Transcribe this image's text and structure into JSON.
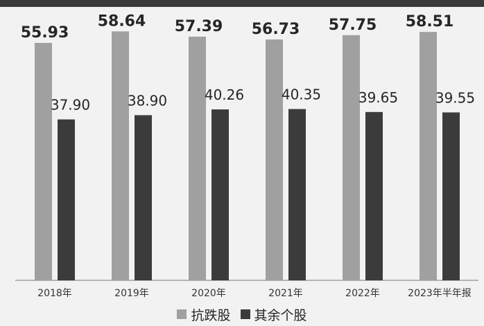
{
  "colors": {
    "series_a": "#a0a0a0",
    "series_b": "#3b3b3b",
    "background": "#f2f2f2"
  },
  "chart_data": {
    "type": "bar",
    "categories": [
      "2018年",
      "2019年",
      "2020年",
      "2021年",
      "2022年",
      "2023年半年报"
    ],
    "series": [
      {
        "name": "抗跌股",
        "values": [
          55.93,
          58.64,
          57.39,
          56.73,
          57.75,
          58.51
        ],
        "labels": [
          "55.93",
          "58.64",
          "57.39",
          "56.73",
          "57.75",
          "58.51"
        ]
      },
      {
        "name": "其余个股",
        "values": [
          37.9,
          38.9,
          40.26,
          40.35,
          39.65,
          39.55
        ],
        "labels": [
          "37.90",
          "38.90",
          "40.26",
          "40.35",
          "39.65",
          "39.55"
        ]
      }
    ],
    "title": "",
    "xlabel": "",
    "ylabel": "",
    "ylim": [
      0,
      60
    ],
    "grid": false,
    "legend": "bottom-center"
  }
}
